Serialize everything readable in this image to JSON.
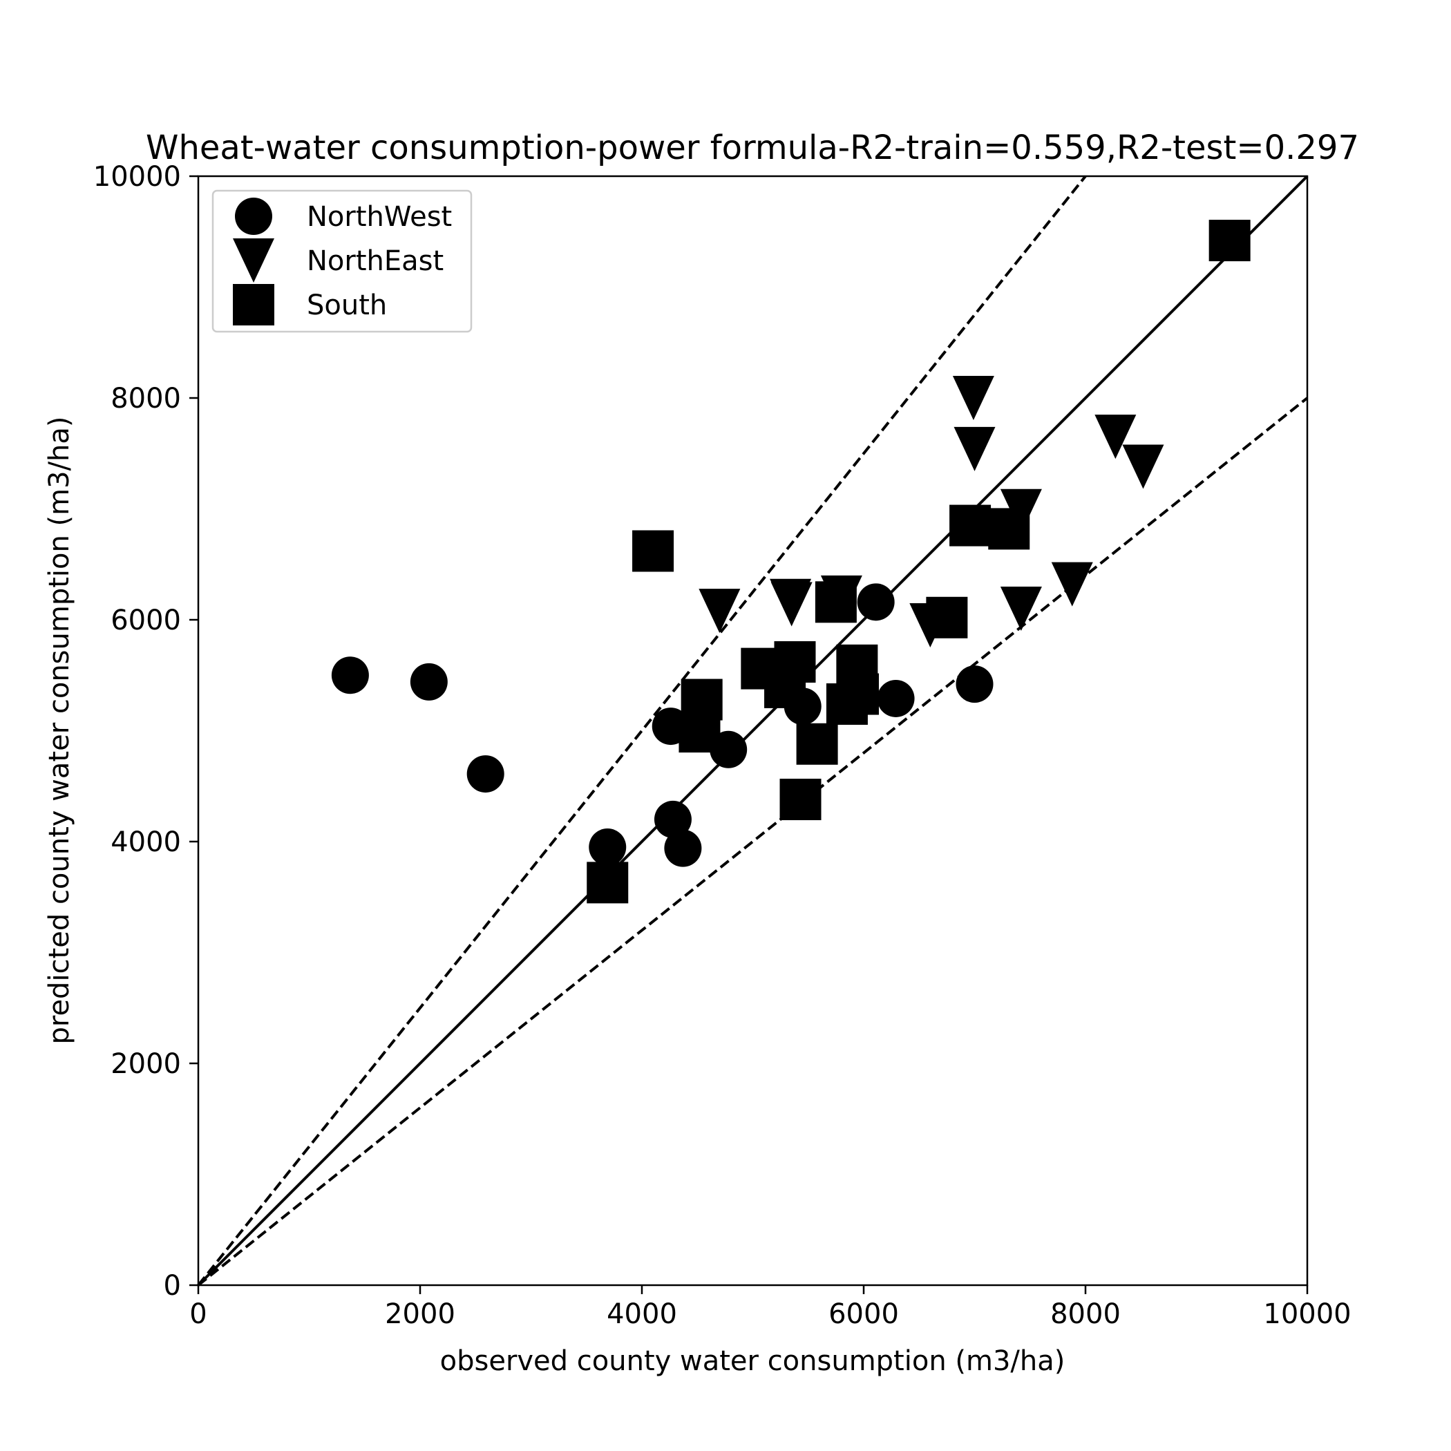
{
  "chart_data": {
    "type": "scatter",
    "title": "Wheat-water consumption-power formula-R2-train=0.559,R2-test=0.297",
    "xlabel": "observed county water consumption (m3/ha)",
    "ylabel": "predicted county water consumption (m3/ha)",
    "xlim": [
      0,
      10000
    ],
    "ylim": [
      0,
      10000
    ],
    "xticks": [
      "0",
      "2000",
      "4000",
      "6000",
      "8000",
      "10000"
    ],
    "yticks": [
      "0",
      "2000",
      "4000",
      "6000",
      "8000",
      "10000"
    ],
    "grid": false,
    "legend_position": "top-left",
    "marker_color": "#000000",
    "reference_lines": [
      {
        "style": "solid",
        "slope": 1.0
      },
      {
        "style": "dashed",
        "slope": 1.25
      },
      {
        "style": "dashed",
        "slope": 0.8
      }
    ],
    "series": [
      {
        "name": "NorthWest",
        "marker": "circle",
        "points": [
          [
            1370,
            5500
          ],
          [
            2080,
            5440
          ],
          [
            2590,
            4610
          ],
          [
            3690,
            3950
          ],
          [
            4260,
            5040
          ],
          [
            4280,
            4200
          ],
          [
            4370,
            3940
          ],
          [
            4780,
            4830
          ],
          [
            5450,
            5220
          ],
          [
            6110,
            6160
          ],
          [
            6290,
            5290
          ],
          [
            7000,
            5420
          ]
        ]
      },
      {
        "name": "NorthEast",
        "marker": "triangle-down",
        "points": [
          [
            4700,
            6080
          ],
          [
            5350,
            6140
          ],
          [
            5340,
            6170
          ],
          [
            5800,
            6200
          ],
          [
            6600,
            5950
          ],
          [
            6990,
            8000
          ],
          [
            7000,
            7540
          ],
          [
            7420,
            6980
          ],
          [
            7420,
            6100
          ],
          [
            7880,
            6320
          ],
          [
            8270,
            7650
          ],
          [
            8520,
            7380
          ]
        ]
      },
      {
        "name": "South",
        "marker": "square",
        "points": [
          [
            3690,
            3630
          ],
          [
            4100,
            6620
          ],
          [
            4540,
            5280
          ],
          [
            4520,
            4990
          ],
          [
            5080,
            5560
          ],
          [
            5290,
            5390
          ],
          [
            5380,
            5620
          ],
          [
            5430,
            4380
          ],
          [
            5580,
            4880
          ],
          [
            5750,
            6160
          ],
          [
            5850,
            5240
          ],
          [
            5940,
            5590
          ],
          [
            5950,
            5330
          ],
          [
            6750,
            6020
          ],
          [
            6960,
            6850
          ],
          [
            7310,
            6820
          ],
          [
            9300,
            9420
          ]
        ]
      }
    ]
  }
}
